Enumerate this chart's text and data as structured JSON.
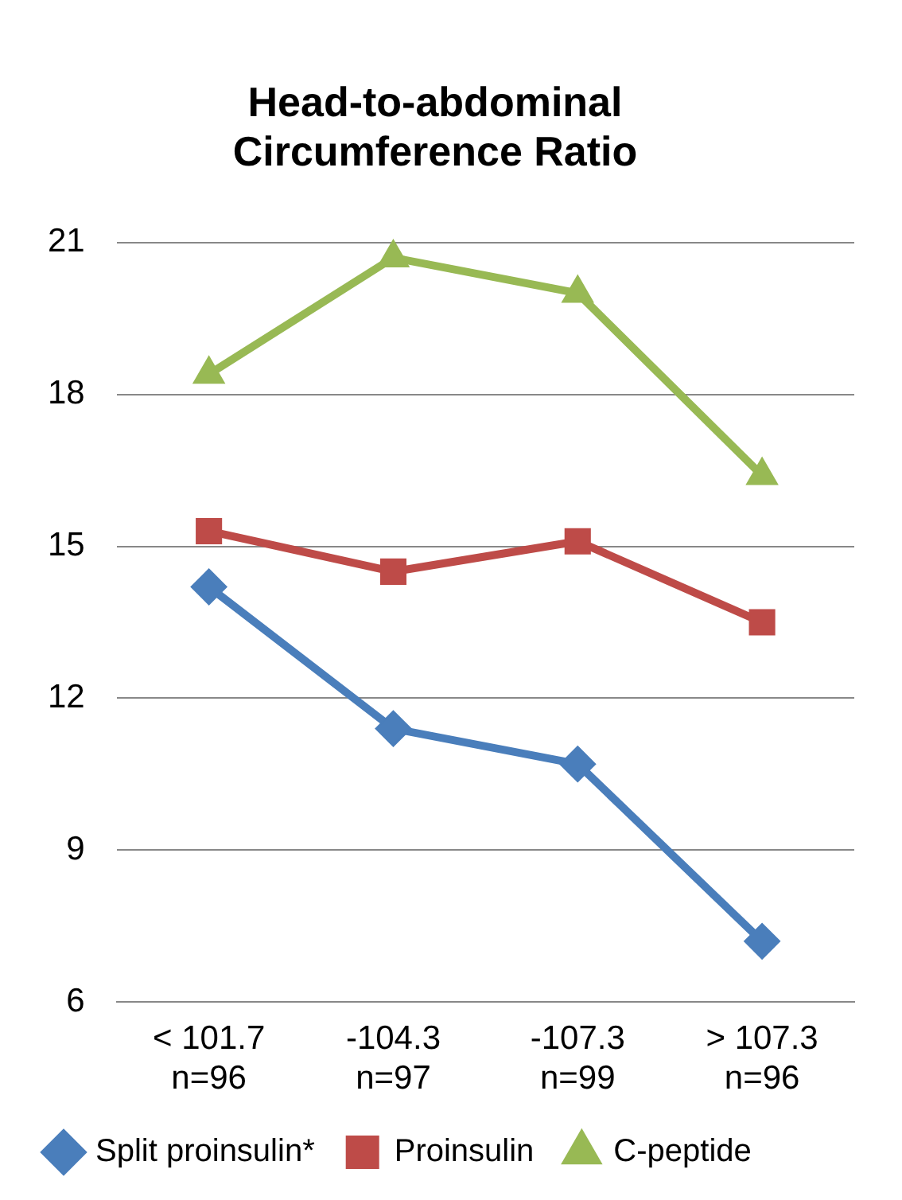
{
  "chart_data": {
    "type": "line",
    "title": "Head-to-abdominal Circumference Ratio",
    "categories": [
      "< 101.7\nn=96",
      "-104.3\nn=97",
      "-107.3\nn=99",
      "> 107.3\nn=96"
    ],
    "series": [
      {
        "name": "Split proinsulin*",
        "color": "#4a7ebb",
        "marker": "diamond",
        "values": [
          14.2,
          11.4,
          10.7,
          7.2
        ]
      },
      {
        "name": "Proinsulin",
        "color": "#be4b48",
        "marker": "square",
        "values": [
          15.3,
          14.5,
          15.1,
          13.5
        ]
      },
      {
        "name": "C-peptide",
        "color": "#98b954",
        "marker": "triangle",
        "values": [
          18.4,
          20.7,
          20.0,
          16.4
        ]
      }
    ],
    "ylim": [
      6,
      21
    ],
    "yticks": [
      6,
      9,
      12,
      15,
      18,
      21
    ],
    "grid": "y",
    "legend": "bottom"
  }
}
